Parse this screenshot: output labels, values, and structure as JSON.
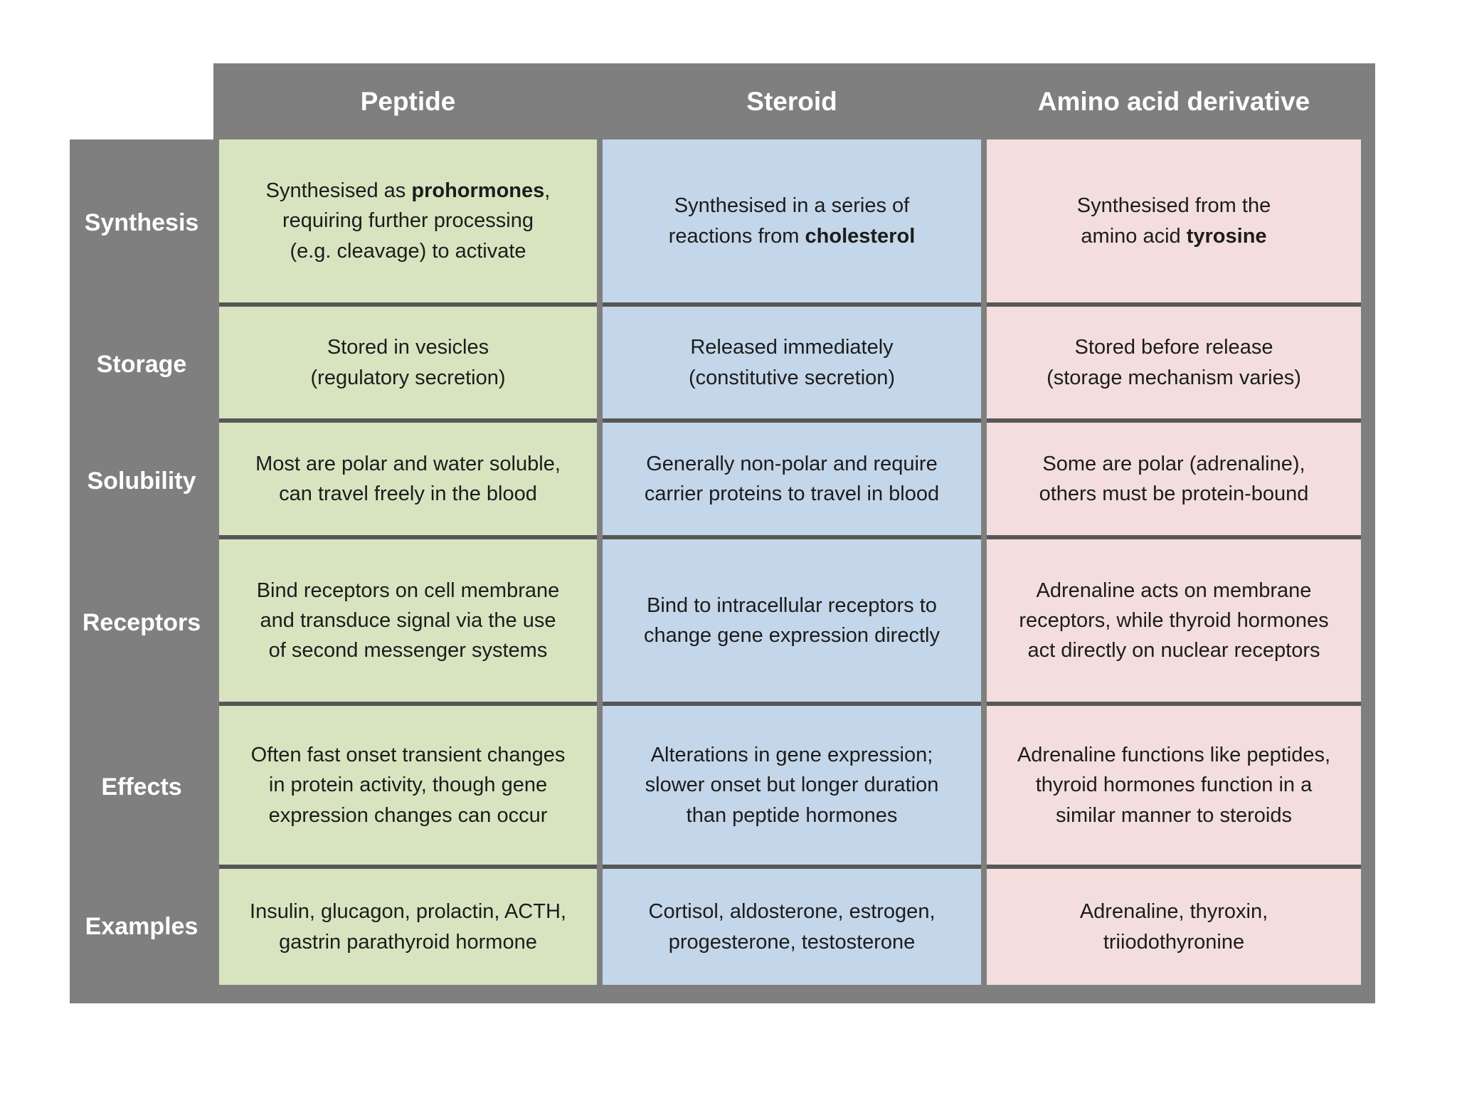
{
  "title": "Hormone classes comparison table",
  "colors": {
    "frame_gray": "#7f7f7f",
    "row_separator": "#575757",
    "column_peptide_green": "#d8e4c0",
    "column_steroid_blue": "#c4d6e9",
    "column_amino_pink": "#f3dedd",
    "header_text": "#ffffff",
    "cell_text": "#1c1c1c",
    "page_background": "#ffffff"
  },
  "table": {
    "columns": [
      {
        "label": "Peptide"
      },
      {
        "label": "Steroid"
      },
      {
        "label": "Amino acid derivative"
      }
    ],
    "rows": [
      {
        "label": "Synthesis",
        "cells": [
          {
            "segments": [
              {
                "t": "Synthesised as "
              },
              {
                "t": "prohormones",
                "b": true
              },
              {
                "t": ","
              },
              {
                "br": true
              },
              {
                "t": "requiring further processing"
              },
              {
                "br": true
              },
              {
                "t": "(e.g. cleavage) to activate"
              }
            ]
          },
          {
            "segments": [
              {
                "t": "Synthesised in a series of"
              },
              {
                "br": true
              },
              {
                "t": "reactions from "
              },
              {
                "t": "cholesterol",
                "b": true
              }
            ]
          },
          {
            "segments": [
              {
                "t": "Synthesised from the"
              },
              {
                "br": true
              },
              {
                "t": "amino acid "
              },
              {
                "t": "tyrosine",
                "b": true
              }
            ]
          }
        ]
      },
      {
        "label": "Storage",
        "cells": [
          {
            "segments": [
              {
                "t": "Stored in vesicles"
              },
              {
                "br": true
              },
              {
                "t": "(regulatory secretion)"
              }
            ]
          },
          {
            "segments": [
              {
                "t": "Released immediately"
              },
              {
                "br": true
              },
              {
                "t": "(constitutive secretion)"
              }
            ]
          },
          {
            "segments": [
              {
                "t": "Stored before release"
              },
              {
                "br": true
              },
              {
                "t": "(storage mechanism varies)"
              }
            ]
          }
        ]
      },
      {
        "label": "Solubility",
        "cells": [
          {
            "segments": [
              {
                "t": "Most are polar and water soluble,"
              },
              {
                "br": true
              },
              {
                "t": "can travel freely in the blood"
              }
            ]
          },
          {
            "segments": [
              {
                "t": "Generally non-polar and require"
              },
              {
                "br": true
              },
              {
                "t": "carrier proteins to travel in blood"
              }
            ]
          },
          {
            "segments": [
              {
                "t": "Some are polar (adrenaline),"
              },
              {
                "br": true
              },
              {
                "t": "others must be protein-bound"
              }
            ]
          }
        ]
      },
      {
        "label": "Receptors",
        "cells": [
          {
            "segments": [
              {
                "t": "Bind receptors on cell membrane"
              },
              {
                "br": true
              },
              {
                "t": "and transduce signal via the use"
              },
              {
                "br": true
              },
              {
                "t": "of second messenger systems"
              }
            ]
          },
          {
            "segments": [
              {
                "t": "Bind to intracellular receptors to"
              },
              {
                "br": true
              },
              {
                "t": "change gene expression directly"
              }
            ]
          },
          {
            "segments": [
              {
                "t": "Adrenaline acts on membrane"
              },
              {
                "br": true
              },
              {
                "t": "receptors, while thyroid hormones"
              },
              {
                "br": true
              },
              {
                "t": "act directly on nuclear receptors"
              }
            ]
          }
        ]
      },
      {
        "label": "Effects",
        "cells": [
          {
            "segments": [
              {
                "t": "Often fast onset transient changes"
              },
              {
                "br": true
              },
              {
                "t": "in protein activity, though gene"
              },
              {
                "br": true
              },
              {
                "t": "expression changes can occur"
              }
            ]
          },
          {
            "segments": [
              {
                "t": "Alterations in gene expression;"
              },
              {
                "br": true
              },
              {
                "t": "slower onset but longer duration"
              },
              {
                "br": true
              },
              {
                "t": "than peptide hormones"
              }
            ]
          },
          {
            "segments": [
              {
                "t": "Adrenaline functions like peptides,"
              },
              {
                "br": true
              },
              {
                "t": "thyroid hormones function in a"
              },
              {
                "br": true
              },
              {
                "t": "similar manner to steroids"
              }
            ]
          }
        ]
      },
      {
        "label": "Examples",
        "cells": [
          {
            "segments": [
              {
                "t": "Insulin, glucagon, prolactin, ACTH,"
              },
              {
                "br": true
              },
              {
                "t": "gastrin parathyroid hormone"
              }
            ]
          },
          {
            "segments": [
              {
                "t": "Cortisol, aldosterone, estrogen,"
              },
              {
                "br": true
              },
              {
                "t": "progesterone, testosterone"
              }
            ]
          },
          {
            "segments": [
              {
                "t": "Adrenaline, thyroxin,"
              },
              {
                "br": true
              },
              {
                "t": "triiodothyronine"
              }
            ]
          }
        ]
      }
    ]
  }
}
